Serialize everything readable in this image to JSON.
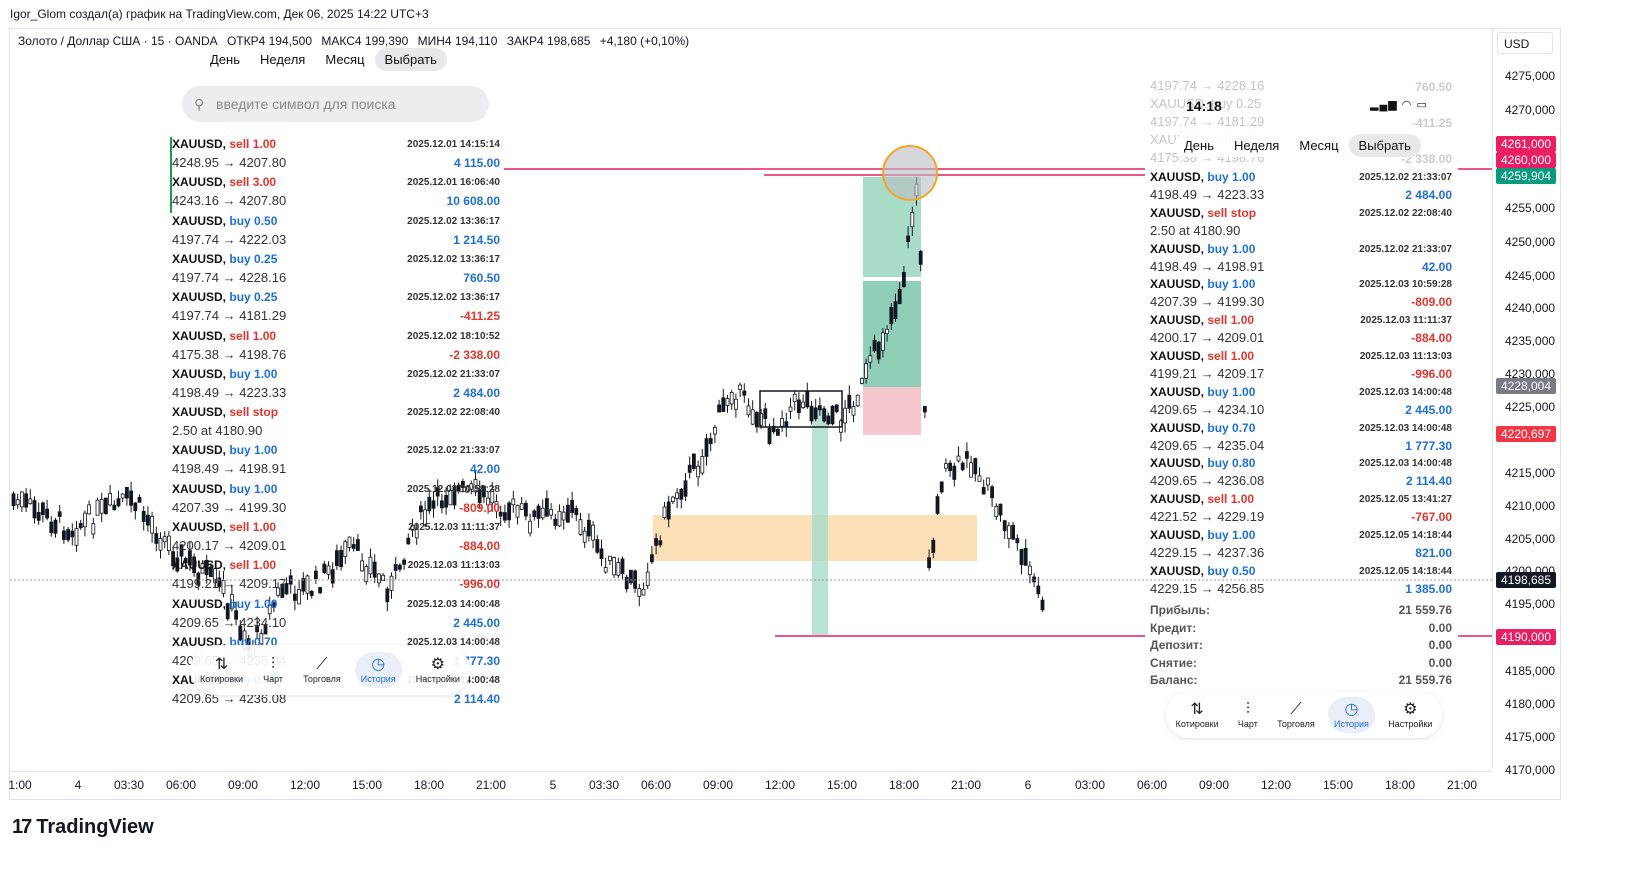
{
  "header": {
    "author_line": "Igor_Glom создал(а) график на TradingView.com, Дек 06, 2025 14:22 UTC+3"
  },
  "symbol": {
    "name": "Золото / Доллар США · 15 · OANDA",
    "open": "ОТКР4 194,500",
    "high": "МАКС4 199,390",
    "low": "МИН4 194,110",
    "close": "ЗАКР4 198,685",
    "change": "+4,180 (+0,10%)"
  },
  "currency": "USD",
  "price_axis": {
    "ticks": [
      "4275,000",
      "4270,000",
      "4255,000",
      "4250,000",
      "4245,000",
      "4240,000",
      "4235,000",
      "4230,000",
      "4225,000",
      "4215,000",
      "4210,000",
      "4205,000",
      "4200,000",
      "4195,000",
      "4185,000",
      "4180,000",
      "4175,000",
      "4170,000"
    ],
    "badges": [
      {
        "label": "4261,000",
        "color": "#e91e63"
      },
      {
        "label": "4260,000",
        "color": "#e91e63"
      },
      {
        "label": "4259,904",
        "color": "#089981"
      },
      {
        "label": "4228,004",
        "color": "#787b86"
      },
      {
        "label": "4220,697",
        "color": "#f23645"
      },
      {
        "label": "4198,685",
        "color": "#131722"
      },
      {
        "label": "4190,000",
        "color": "#e91e63"
      }
    ]
  },
  "time_axis": {
    "ticks": [
      "1:00",
      "4",
      "03:30",
      "06:00",
      "09:00",
      "12:00",
      "15:00",
      "18:00",
      "21:00",
      "5",
      "03:30",
      "06:00",
      "09:00",
      "12:00",
      "15:00",
      "18:00",
      "21:00",
      "6",
      "03:00",
      "06:00",
      "09:00",
      "12:00",
      "15:00",
      "18:00",
      "21:00"
    ]
  },
  "brand": {
    "name": "TradingView"
  },
  "left_panel": {
    "periods": [
      "День",
      "Неделя",
      "Месяц",
      "Выбрать"
    ],
    "search_placeholder": "введите символ для поиска",
    "trades": [
      {
        "symbol": "XAUUSD,",
        "side": "sell",
        "lots": "sell 1.00",
        "prices": "4248.95 → 4207.80",
        "date": "2025.12.01 14:15:14",
        "pl": "4 115.00",
        "pl_sign": "pos"
      },
      {
        "symbol": "XAUUSD,",
        "side": "sell",
        "lots": "sell 3.00",
        "prices": "4243.16 → 4207.80",
        "date": "2025.12.01 16:06:40",
        "pl": "10 608.00",
        "pl_sign": "pos"
      },
      {
        "symbol": "XAUUSD,",
        "side": "buy",
        "lots": "buy 0.50",
        "prices": "4197.74 → 4222.03",
        "date": "2025.12.02 13:36:17",
        "pl": "1 214.50",
        "pl_sign": "pos"
      },
      {
        "symbol": "XAUUSD,",
        "side": "buy",
        "lots": "buy 0.25",
        "prices": "4197.74 → 4228.16",
        "date": "2025.12.02 13:36:17",
        "pl": "760.50",
        "pl_sign": "pos"
      },
      {
        "symbol": "XAUUSD,",
        "side": "buy",
        "lots": "buy 0.25",
        "prices": "4197.74 → 4181.29",
        "date": "2025.12.02 13:36:17",
        "pl": "-411.25",
        "pl_sign": "neg"
      },
      {
        "symbol": "XAUUSD,",
        "side": "sell",
        "lots": "sell 1.00",
        "prices": "4175.38 → 4198.76",
        "date": "2025.12.02 18:10:52",
        "pl": "-2 338.00",
        "pl_sign": "neg"
      },
      {
        "symbol": "XAUUSD,",
        "side": "buy",
        "lots": "buy 1.00",
        "prices": "4198.49 → 4223.33",
        "date": "2025.12.02 21:33:07",
        "pl": "2 484.00",
        "pl_sign": "pos"
      },
      {
        "symbol": "XAUUSD,",
        "side": "sell",
        "lots": "sell stop",
        "prices": "2.50 at 4180.90",
        "date": "2025.12.02 22:08:40",
        "pl": "",
        "pl_sign": "pos"
      },
      {
        "symbol": "XAUUSD,",
        "side": "buy",
        "lots": "buy 1.00",
        "prices": "4198.49 → 4198.91",
        "date": "2025.12.02 21:33:07",
        "pl": "42.00",
        "pl_sign": "pos"
      },
      {
        "symbol": "XAUUSD,",
        "side": "buy",
        "lots": "buy 1.00",
        "prices": "4207.39 → 4199.30",
        "date": "2025.12.03 10:59:28",
        "pl": "-809.00",
        "pl_sign": "neg"
      },
      {
        "symbol": "XAUUSD,",
        "side": "sell",
        "lots": "sell 1.00",
        "prices": "4200.17 → 4209.01",
        "date": "2025.12.03 11:11:37",
        "pl": "-884.00",
        "pl_sign": "neg"
      },
      {
        "symbol": "XAUUSD,",
        "side": "sell",
        "lots": "sell 1.00",
        "prices": "4199.21 → 4209.17",
        "date": "2025.12.03 11:13:03",
        "pl": "-996.00",
        "pl_sign": "neg"
      },
      {
        "symbol": "XAUUSD,",
        "side": "buy",
        "lots": "buy 1.00",
        "prices": "4209.65 → 4234.10",
        "date": "2025.12.03 14:00:48",
        "pl": "2 445.00",
        "pl_sign": "pos"
      },
      {
        "symbol": "XAUUSD,",
        "side": "buy",
        "lots": "buy 0.70",
        "prices": "4209.65 → 4235.04",
        "date": "2025.12.03 14:00:48",
        "pl": "1 777.30",
        "pl_sign": "pos"
      },
      {
        "symbol": "XAUUSD,",
        "side": "buy",
        "lots": "buy 0.80",
        "prices": "4209.65 → 4236.08",
        "date": "2025.12.03 14:00:48",
        "pl": "2 114.40",
        "pl_sign": "pos"
      }
    ]
  },
  "nav": {
    "items": [
      "Котировки",
      "Чарт",
      "Торговля",
      "История",
      "Настройки"
    ],
    "active": "История"
  },
  "right_panel": {
    "status_time": "14:18",
    "periods": [
      "День",
      "Неделя",
      "Месяц",
      "Выбрать"
    ],
    "faded_rows": [
      {
        "prices": "4197.74 → 4228.16",
        "pl": "760.50"
      },
      {
        "prices": "XAUUSD, buy 0.25",
        "pl": ""
      },
      {
        "prices": "4197.74 → 4181.29",
        "pl": "-411.25"
      },
      {
        "prices": "XAUUSD, sell 1.00",
        "pl": ""
      },
      {
        "prices": "4175.38 → 4198.76",
        "pl": "-2 338.00"
      }
    ],
    "trades": [
      {
        "symbol": "XAUUSD,",
        "side": "buy",
        "lots": "buy 1.00",
        "prices": "4198.49 → 4223.33",
        "date": "2025.12.02 21:33:07",
        "pl": "2 484.00",
        "pl_sign": "pos"
      },
      {
        "symbol": "XAUUSD,",
        "side": "sell",
        "lots": "sell stop",
        "prices": "2.50 at 4180.90",
        "date": "2025.12.02 22:08:40",
        "pl": "",
        "pl_sign": "pos"
      },
      {
        "symbol": "XAUUSD,",
        "side": "buy",
        "lots": "buy 1.00",
        "prices": "4198.49 → 4198.91",
        "date": "2025.12.02 21:33:07",
        "pl": "42.00",
        "pl_sign": "pos"
      },
      {
        "symbol": "XAUUSD,",
        "side": "buy",
        "lots": "buy 1.00",
        "prices": "4207.39 → 4199.30",
        "date": "2025.12.03 10:59:28",
        "pl": "-809.00",
        "pl_sign": "neg"
      },
      {
        "symbol": "XAUUSD,",
        "side": "sell",
        "lots": "sell 1.00",
        "prices": "4200.17 → 4209.01",
        "date": "2025.12.03 11:11:37",
        "pl": "-884.00",
        "pl_sign": "neg"
      },
      {
        "symbol": "XAUUSD,",
        "side": "sell",
        "lots": "sell 1.00",
        "prices": "4199.21 → 4209.17",
        "date": "2025.12.03 11:13:03",
        "pl": "-996.00",
        "pl_sign": "neg"
      },
      {
        "symbol": "XAUUSD,",
        "side": "buy",
        "lots": "buy 1.00",
        "prices": "4209.65 → 4234.10",
        "date": "2025.12.03 14:00:48",
        "pl": "2 445.00",
        "pl_sign": "pos"
      },
      {
        "symbol": "XAUUSD,",
        "side": "buy",
        "lots": "buy 0.70",
        "prices": "4209.65 → 4235.04",
        "date": "2025.12.03 14:00:48",
        "pl": "1 777.30",
        "pl_sign": "pos"
      },
      {
        "symbol": "XAUUSD,",
        "side": "buy",
        "lots": "buy 0.80",
        "prices": "4209.65 → 4236.08",
        "date": "2025.12.03 14:00:48",
        "pl": "2 114.40",
        "pl_sign": "pos"
      },
      {
        "symbol": "XAUUSD,",
        "side": "sell",
        "lots": "sell 1.00",
        "prices": "4221.52 → 4229.19",
        "date": "2025.12.05 13:41:27",
        "pl": "-767.00",
        "pl_sign": "neg"
      },
      {
        "symbol": "XAUUSD,",
        "side": "buy",
        "lots": "buy 1.00",
        "prices": "4229.15 → 4237.36",
        "date": "2025.12.05 14:18:44",
        "pl": "821.00",
        "pl_sign": "pos"
      },
      {
        "symbol": "XAUUSD,",
        "side": "buy",
        "lots": "buy 0.50",
        "prices": "4229.15 → 4256.85",
        "date": "2025.12.05 14:18:44",
        "pl": "1 385.00",
        "pl_sign": "pos"
      }
    ],
    "summary": [
      {
        "label": "Прибыль:",
        "value": "21 559.76"
      },
      {
        "label": "Кредит:",
        "value": "0.00"
      },
      {
        "label": "Депозит:",
        "value": "0.00"
      },
      {
        "label": "Снятие:",
        "value": "0.00"
      },
      {
        "label": "Баланс:",
        "value": "21 559.76"
      }
    ]
  },
  "colors": {
    "up": "#ffffff",
    "down": "#131722",
    "tp_zone": "#a8dcc9",
    "sl_zone": "#f6c7cf",
    "demand_zone": "#fbe0b8",
    "level_line": "#e91e63",
    "highlight_circle": "#f5a623"
  }
}
